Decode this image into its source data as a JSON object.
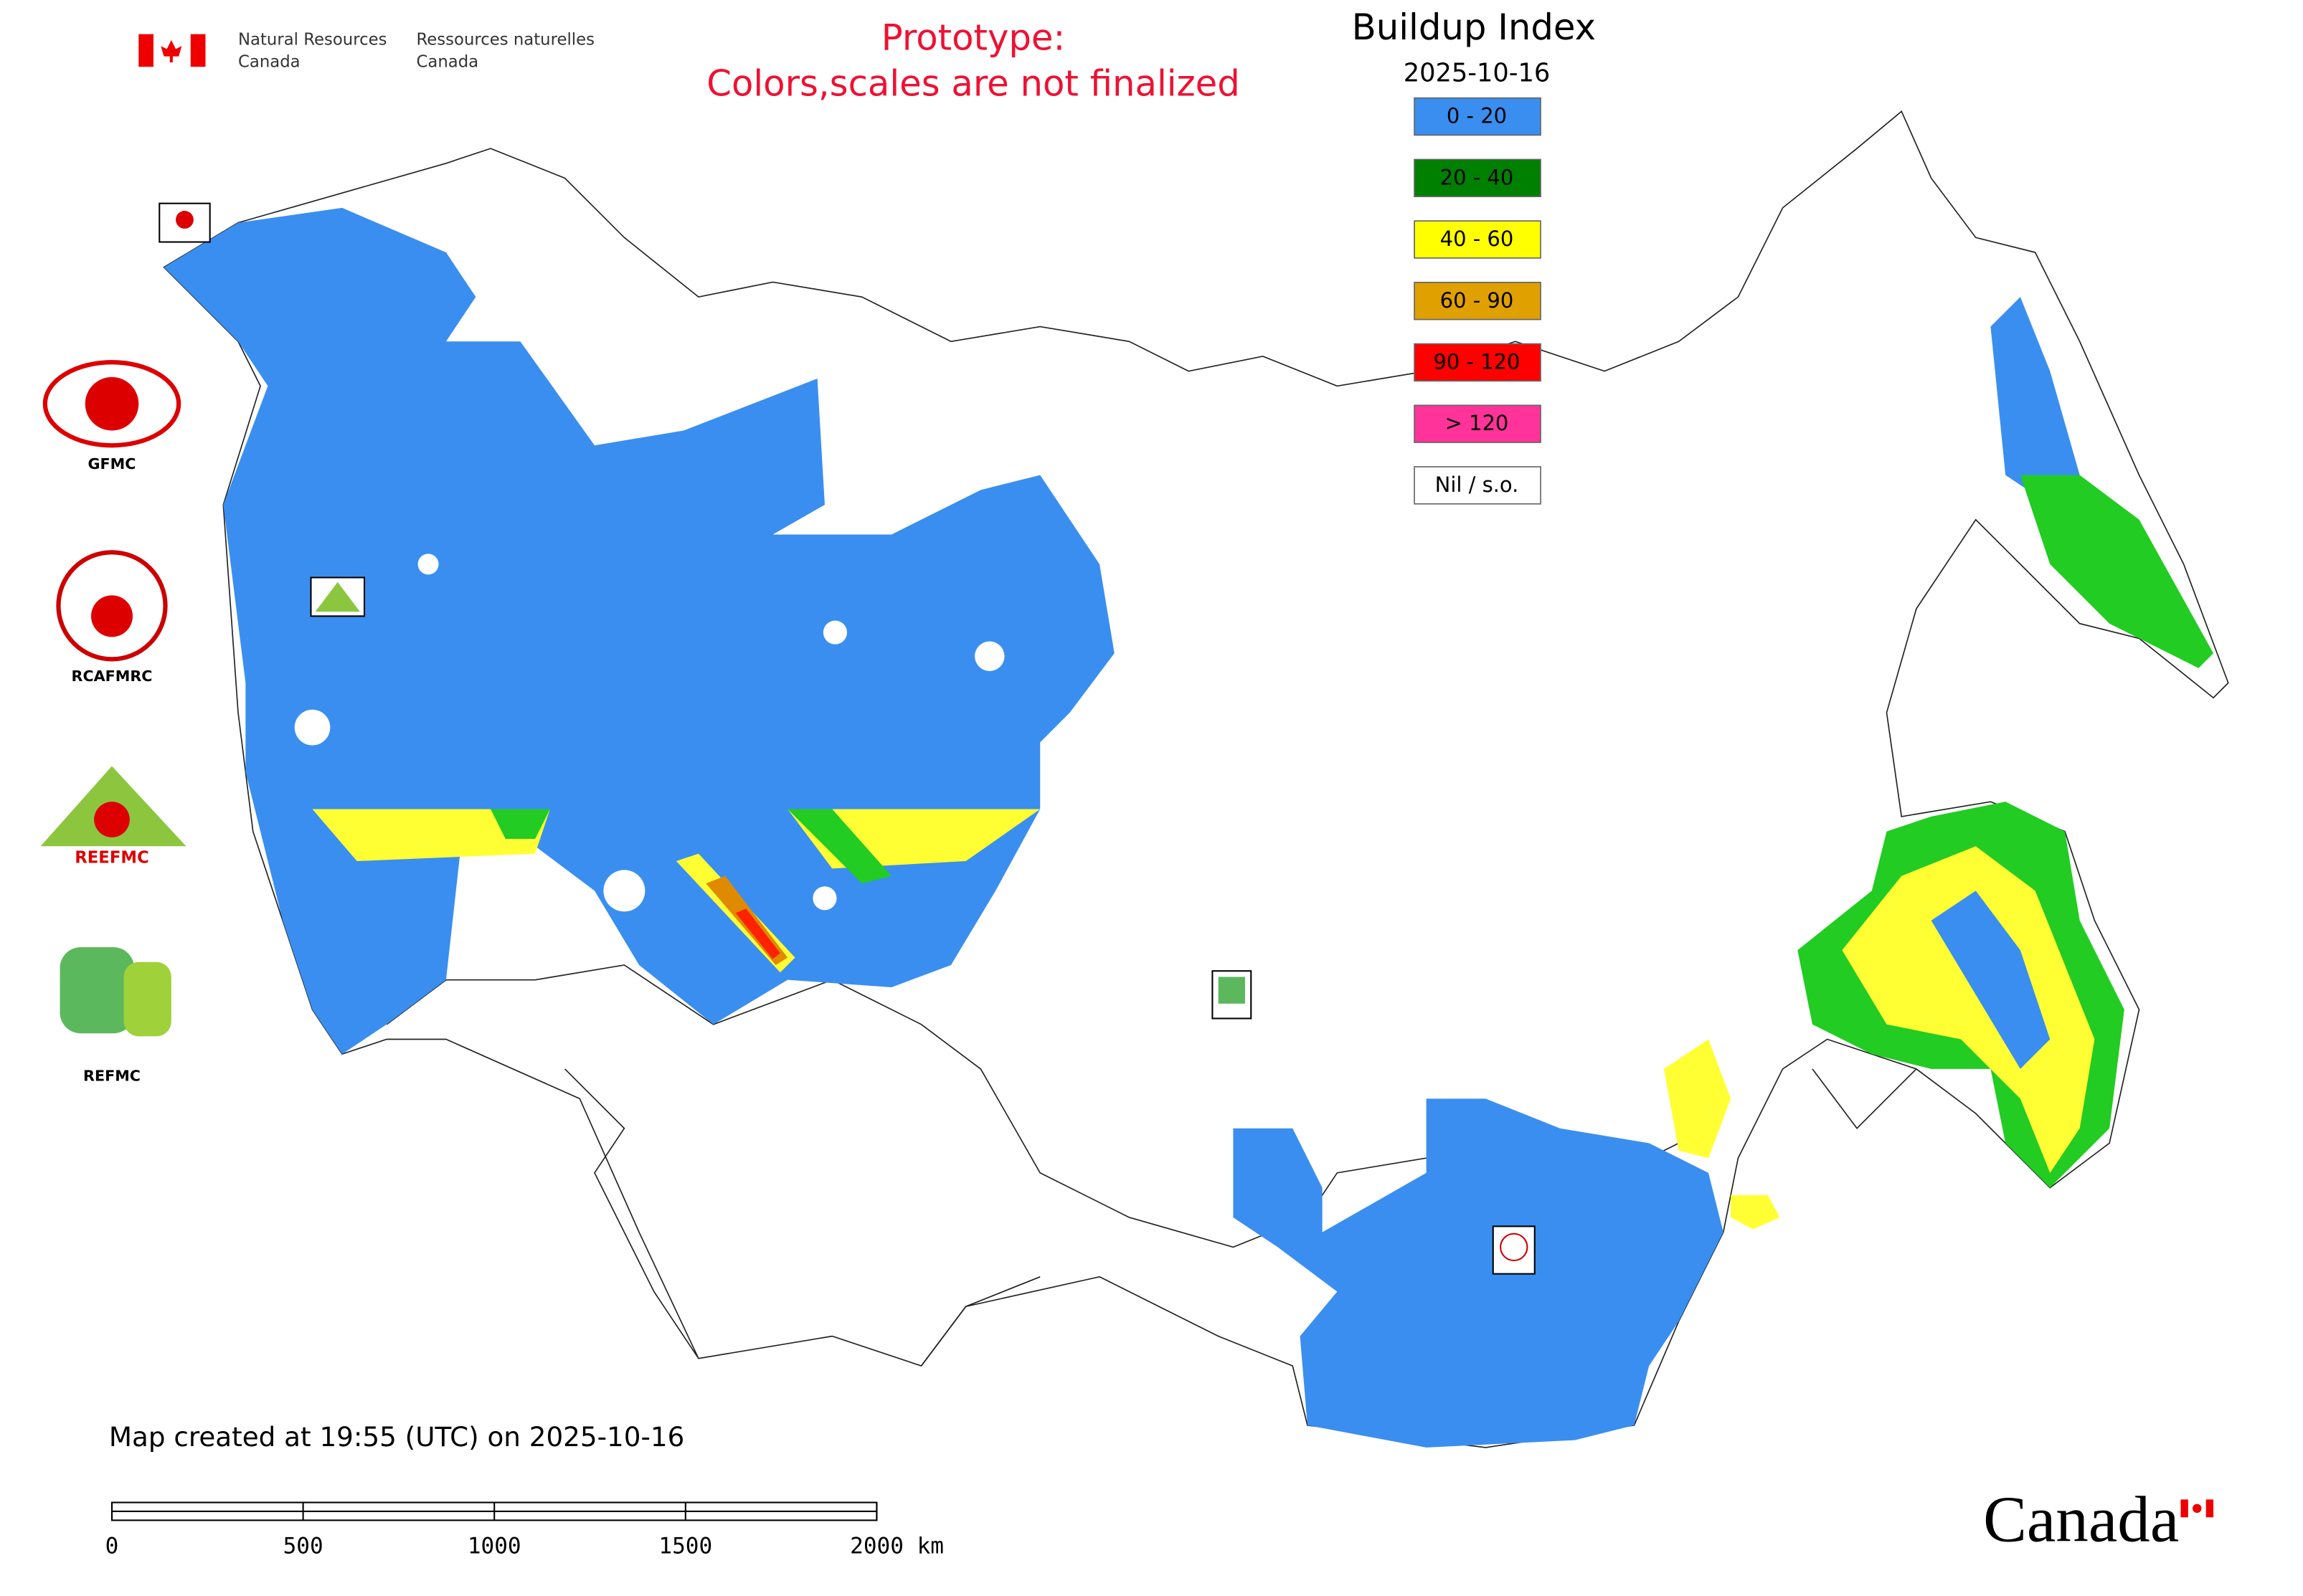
{
  "header": {
    "agency_en": [
      "Natural Resources",
      "Canada"
    ],
    "agency_fr": [
      "Ressources naturelles",
      "Canada"
    ],
    "notice": [
      "Prototype:",
      "Colors,scales are not finalized"
    ]
  },
  "legend": {
    "title": "Buildup Index",
    "date": "2025-10-16",
    "items": [
      {
        "label": "0 - 20",
        "color": "#3a8ef0"
      },
      {
        "label": "20 - 40",
        "color": "#008000"
      },
      {
        "label": "40 - 60",
        "color": "#ffff00"
      },
      {
        "label": "60 - 90",
        "color": "#e0a000"
      },
      {
        "label": "90 - 120",
        "color": "#ff0000"
      },
      {
        "label": "> 120",
        "color": "#ff3399"
      },
      {
        "label": "Nil / s.o.",
        "color": "#ffffff"
      }
    ]
  },
  "logos": [
    "GFMC",
    "RCAFMRC",
    "REEFMC",
    "REFMC"
  ],
  "footer": {
    "created": "Map created at 19:55 (UTC) on 2025-10-16",
    "wordmark": "Canada"
  },
  "scale_bar": {
    "lim": [
      0,
      2000
    ],
    "ticks": [
      0,
      500,
      1000,
      1500,
      {
        "value": 2000,
        "label": "2000 km"
      }
    ]
  }
}
